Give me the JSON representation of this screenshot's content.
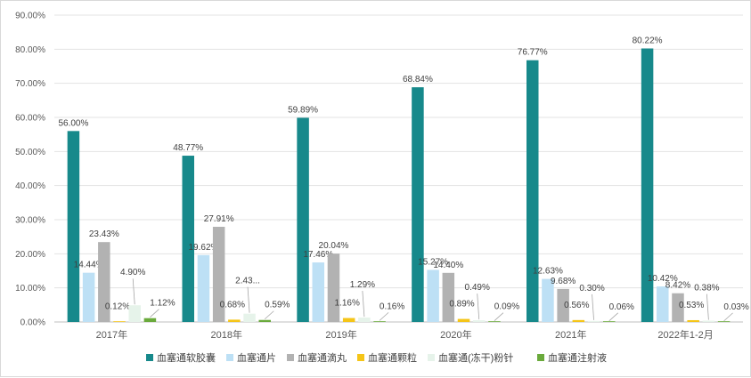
{
  "chart_data": {
    "type": "bar",
    "title": "",
    "xlabel": "",
    "ylabel": "",
    "ylim": [
      0,
      90
    ],
    "yticks": [
      "0.00%",
      "10.00%",
      "20.00%",
      "30.00%",
      "40.00%",
      "50.00%",
      "60.00%",
      "70.00%",
      "80.00%",
      "90.00%"
    ],
    "grid": true,
    "legend_position": "bottom",
    "categories": [
      "2017年",
      "2018年",
      "2019年",
      "2020年",
      "2021年",
      "2022年1-2月"
    ],
    "series": [
      {
        "name": "血塞通软胶囊",
        "color": "#17898b",
        "values": [
          56.0,
          48.77,
          59.89,
          68.84,
          76.77,
          80.22
        ],
        "labels": [
          "56.00%",
          "48.77%",
          "59.89%",
          "68.84%",
          "76.77%",
          "80.22%"
        ]
      },
      {
        "name": "血塞通片",
        "color": "#bde0f5",
        "values": [
          14.44,
          19.62,
          17.46,
          15.27,
          12.63,
          10.42
        ],
        "labels": [
          "14.44%",
          "19.62%",
          "17.46%",
          "15.27%",
          "12.63%",
          "10.42%"
        ]
      },
      {
        "name": "血塞通滴丸",
        "color": "#b2b2b2",
        "values": [
          23.43,
          27.91,
          20.04,
          14.4,
          9.68,
          8.42
        ],
        "labels": [
          "23.43%",
          "27.91%",
          "20.04%",
          "14.40%",
          "9.68%",
          "8.42%"
        ]
      },
      {
        "name": "血塞通颗粒",
        "color": "#f5c518",
        "values": [
          0.12,
          0.68,
          1.16,
          0.89,
          0.56,
          0.53
        ],
        "labels": [
          "0.12%",
          "0.68%",
          "1.16%",
          "0.89%",
          "0.56%",
          "0.53%"
        ]
      },
      {
        "name": "血塞通(冻干)粉针",
        "color": "#e6f3ea",
        "values": [
          4.9,
          2.43,
          1.29,
          0.49,
          0.3,
          0.38
        ],
        "labels": [
          "4.90%",
          "2.43...",
          "1.29%",
          "0.49%",
          "0.30%",
          "0.38%"
        ]
      },
      {
        "name": "血塞通注射液",
        "color": "#6aaa3c",
        "values": [
          1.12,
          0.59,
          0.16,
          0.09,
          0.06,
          0.03
        ],
        "labels": [
          "1.12%",
          "0.59%",
          "0.16%",
          "0.09%",
          "0.06%",
          "0.03%"
        ]
      }
    ]
  }
}
